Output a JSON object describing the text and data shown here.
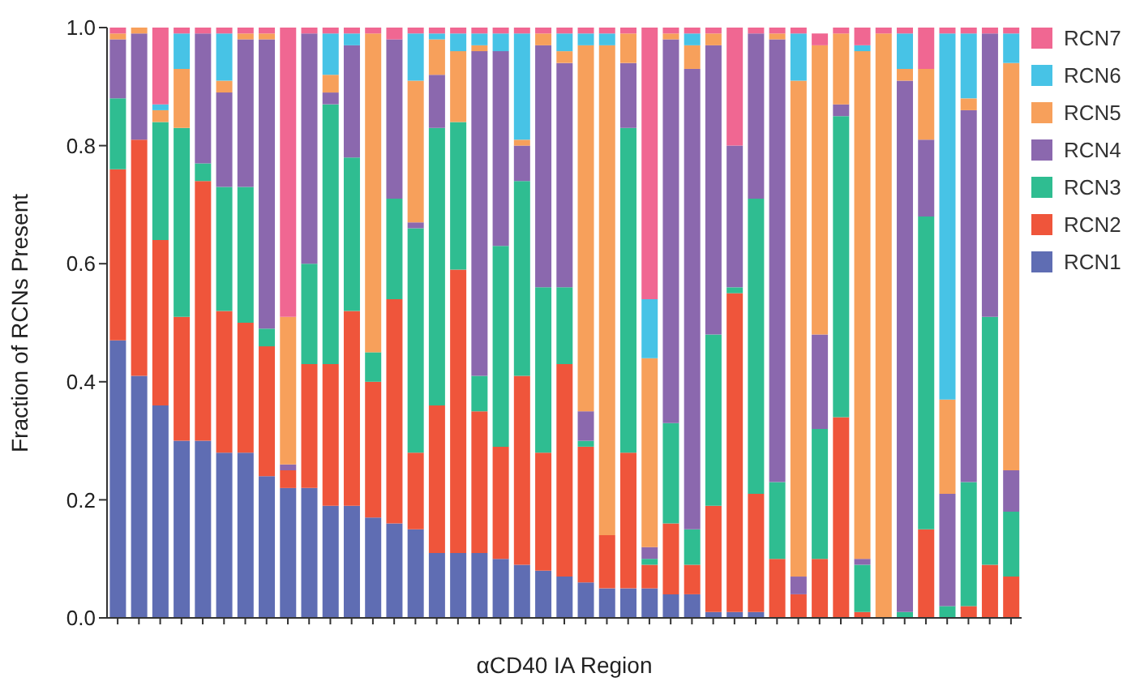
{
  "chart_data": {
    "type": "bar",
    "stacked": true,
    "xlabel": "αCD40 IA Region",
    "ylabel": "Fraction of RCNs Present",
    "categories": [
      null,
      null,
      null,
      null,
      null,
      null,
      null,
      null,
      null,
      null,
      null,
      null,
      null,
      null,
      null,
      null,
      null,
      null,
      null,
      null,
      null,
      null,
      null,
      null,
      null,
      null,
      null,
      null,
      null,
      null,
      null,
      null,
      null,
      null,
      null,
      null,
      null,
      null,
      null,
      null,
      null,
      null,
      null
    ],
    "ylim": [
      0,
      1
    ],
    "yticks": [
      {
        "value": 0,
        "label": "0.0"
      },
      0.2,
      0.4,
      0.6,
      0.8,
      {
        "value": 1,
        "label": "1.0"
      }
    ],
    "legend": "right",
    "grid": false,
    "series": [
      {
        "name": "RCN1",
        "color": "#5f6db3",
        "values": [
          0.47,
          0.41,
          0.36,
          0.3,
          0.3,
          0.28,
          0.28,
          0.24,
          0.22,
          0.22,
          0.19,
          0.19,
          0.17,
          0.16,
          0.15,
          0.11,
          0.11,
          0.11,
          0.1,
          0.09,
          0.08,
          0.07,
          0.06,
          0.05,
          0.05,
          0.05,
          0.04,
          0.04,
          0.01,
          0.01,
          0.01,
          0,
          0,
          0,
          0,
          0,
          0,
          0,
          0,
          0,
          0,
          0,
          0
        ]
      },
      {
        "name": "RCN2",
        "color": "#ef553b",
        "values": [
          0.29,
          0.4,
          0.28,
          0.21,
          0.44,
          0.24,
          0.22,
          0.22,
          0.03,
          0.21,
          0.24,
          0.33,
          0.23,
          0.38,
          0.13,
          0.25,
          0.48,
          0.24,
          0.19,
          0.32,
          0.2,
          0.36,
          0.23,
          0.09,
          0.23,
          0.04,
          0.12,
          0.05,
          0.18,
          0.54,
          0.2,
          0.1,
          0.04,
          0.1,
          0.34,
          0.01,
          0,
          0,
          0.15,
          0,
          0.02,
          0.09,
          0.07
        ]
      },
      {
        "name": "RCN3",
        "color": "#2fbd91",
        "values": [
          0.12,
          0,
          0.2,
          0.32,
          0.03,
          0.21,
          0.23,
          0.03,
          0,
          0.17,
          0.44,
          0.26,
          0.05,
          0.17,
          0.38,
          0.47,
          0.25,
          0.06,
          0.34,
          0.33,
          0.28,
          0.13,
          0.01,
          0,
          0.55,
          0.01,
          0.17,
          0.06,
          0.29,
          0.01,
          0.5,
          0.13,
          0,
          0.22,
          0.51,
          0.08,
          0,
          0.01,
          0.53,
          0.02,
          0.21,
          0.42,
          0.11
        ]
      },
      {
        "name": "RCN4",
        "color": "#8b68ae",
        "values": [
          0.1,
          0.18,
          0,
          0,
          0.22,
          0.16,
          0.25,
          0.49,
          0.01,
          0.39,
          0.02,
          0.19,
          0,
          0.27,
          0.01,
          0.09,
          0,
          0.55,
          0.33,
          0.06,
          0.41,
          0.38,
          0.05,
          0,
          0.11,
          0.02,
          0.65,
          0.78,
          0.49,
          0.24,
          0.28,
          0.75,
          0.03,
          0.16,
          0.02,
          0.01,
          0,
          0.9,
          0.13,
          0.19,
          0.63,
          0.48,
          0.07
        ]
      },
      {
        "name": "RCN5",
        "color": "#f7a05b",
        "values": [
          0.01,
          0.01,
          0.02,
          0.1,
          0,
          0.02,
          0.01,
          0.01,
          0.25,
          0,
          0.03,
          0,
          0.54,
          0,
          0.24,
          0.06,
          0.12,
          0.01,
          0,
          0.01,
          0.02,
          0.02,
          0.62,
          0.83,
          0.05,
          0.32,
          0.01,
          0.04,
          0.02,
          0,
          0,
          0.01,
          0.84,
          0.49,
          0.12,
          0.86,
          0.99,
          0.02,
          0.12,
          0.16,
          0.02,
          0,
          0.69
        ]
      },
      {
        "name": "RCN6",
        "color": "#47c3e6",
        "values": [
          0,
          0,
          0.01,
          0.06,
          0,
          0.08,
          0,
          0,
          0,
          0,
          0.07,
          0.02,
          0,
          0,
          0.08,
          0.01,
          0.03,
          0.02,
          0.03,
          0.18,
          0,
          0.03,
          0.02,
          0.02,
          0,
          0.1,
          0,
          0.02,
          0,
          0,
          0,
          0,
          0.08,
          0,
          0,
          0.01,
          0,
          0.06,
          0,
          0.62,
          0.11,
          0,
          0.05
        ]
      },
      {
        "name": "RCN7",
        "color": "#f06792",
        "values": [
          0.01,
          0,
          0.13,
          0.01,
          0.01,
          0.01,
          0.01,
          0.01,
          0.49,
          0.01,
          0.01,
          0.01,
          0.01,
          0.02,
          0.01,
          0.01,
          0.01,
          0.01,
          0.01,
          0.01,
          0.01,
          0.01,
          0.01,
          0.01,
          0.01,
          0.46,
          0.01,
          0.01,
          0.01,
          0.2,
          0.01,
          0.01,
          0.01,
          0.02,
          0.01,
          0.03,
          0.01,
          0.01,
          0.07,
          0.01,
          0.01,
          0.01,
          0.01
        ]
      }
    ]
  }
}
